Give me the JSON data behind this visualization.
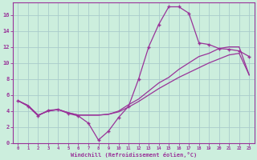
{
  "xlabel": "Windchill (Refroidissement éolien,°C)",
  "background_color": "#cceedd",
  "grid_color": "#aacccc",
  "line_color": "#993399",
  "xlim": [
    -0.5,
    23.5
  ],
  "ylim": [
    0,
    17.5
  ],
  "xticks": [
    0,
    1,
    2,
    3,
    4,
    5,
    6,
    7,
    8,
    9,
    10,
    11,
    12,
    13,
    14,
    15,
    16,
    17,
    18,
    19,
    20,
    21,
    22,
    23
  ],
  "yticks": [
    0,
    2,
    4,
    6,
    8,
    10,
    12,
    14,
    16
  ],
  "line1_x": [
    0,
    1,
    2,
    3,
    4,
    5,
    6,
    7,
    8,
    9,
    10,
    11,
    12,
    13,
    14,
    15,
    16,
    17,
    18,
    19,
    20,
    21,
    22,
    23
  ],
  "line1_y": [
    5.3,
    4.6,
    3.4,
    4.1,
    4.2,
    3.7,
    3.4,
    2.5,
    0.4,
    1.5,
    3.2,
    4.6,
    8.0,
    12.0,
    14.8,
    17.0,
    17.0,
    16.2,
    12.5,
    12.3,
    11.8,
    11.7,
    11.5,
    10.8
  ],
  "line2_x": [
    0,
    1,
    2,
    3,
    4,
    5,
    6,
    7,
    8,
    9,
    10,
    11,
    12,
    13,
    14,
    15,
    16,
    17,
    18,
    19,
    20,
    21,
    22,
    23
  ],
  "line2_y": [
    5.3,
    4.7,
    3.5,
    4.0,
    4.2,
    3.8,
    3.5,
    3.5,
    3.5,
    3.6,
    4.0,
    4.8,
    5.5,
    6.5,
    7.5,
    8.2,
    9.2,
    10.0,
    10.8,
    11.2,
    11.8,
    12.0,
    12.0,
    8.5
  ],
  "line3_x": [
    0,
    1,
    2,
    3,
    4,
    5,
    6,
    7,
    8,
    9,
    10,
    11,
    12,
    13,
    14,
    15,
    16,
    17,
    18,
    19,
    20,
    21,
    22,
    23
  ],
  "line3_y": [
    5.3,
    4.7,
    3.5,
    4.0,
    4.2,
    3.8,
    3.5,
    3.5,
    3.5,
    3.6,
    3.9,
    4.5,
    5.2,
    6.0,
    6.8,
    7.5,
    8.2,
    8.8,
    9.4,
    10.0,
    10.5,
    11.0,
    11.2,
    8.5
  ]
}
